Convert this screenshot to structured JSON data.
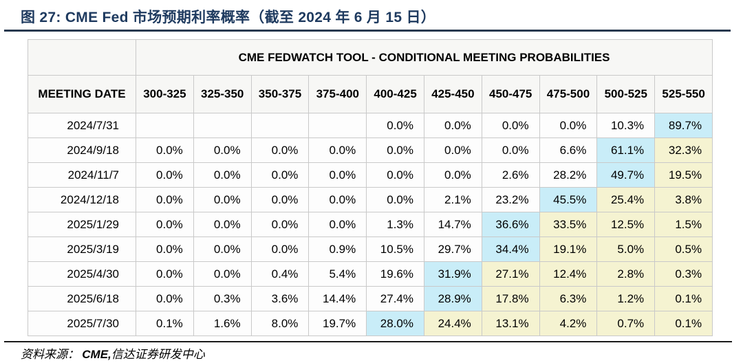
{
  "figure": {
    "title": "图 27:  CME Fed 市场预期利率概率（截至 2024 年 6 月 15 日）"
  },
  "table": {
    "title": "CME FEDWATCH TOOL - CONDITIONAL MEETING PROBABILITIES",
    "date_header": "MEETING DATE",
    "range_headers": [
      "300-325",
      "325-350",
      "350-375",
      "375-400",
      "400-425",
      "425-450",
      "450-475",
      "475-500",
      "500-525",
      "525-550"
    ],
    "rows": [
      {
        "date": "2024/7/31",
        "values": [
          "",
          "",
          "",
          "",
          "0.0%",
          "0.0%",
          "0.0%",
          "0.0%",
          "10.3%",
          "89.7%"
        ],
        "cyan": 9,
        "yellow": []
      },
      {
        "date": "2024/9/18",
        "values": [
          "0.0%",
          "0.0%",
          "0.0%",
          "0.0%",
          "0.0%",
          "0.0%",
          "0.0%",
          "6.6%",
          "61.1%",
          "32.3%"
        ],
        "cyan": 8,
        "yellow": [
          9
        ]
      },
      {
        "date": "2024/11/7",
        "values": [
          "0.0%",
          "0.0%",
          "0.0%",
          "0.0%",
          "0.0%",
          "0.0%",
          "2.6%",
          "28.2%",
          "49.7%",
          "19.5%"
        ],
        "cyan": 8,
        "yellow": [
          9
        ]
      },
      {
        "date": "2024/12/18",
        "values": [
          "0.0%",
          "0.0%",
          "0.0%",
          "0.0%",
          "0.0%",
          "2.1%",
          "23.2%",
          "45.5%",
          "25.4%",
          "3.8%"
        ],
        "cyan": 7,
        "yellow": [
          8,
          9
        ]
      },
      {
        "date": "2025/1/29",
        "values": [
          "0.0%",
          "0.0%",
          "0.0%",
          "0.0%",
          "1.3%",
          "14.7%",
          "36.6%",
          "33.5%",
          "12.5%",
          "1.5%"
        ],
        "cyan": 6,
        "yellow": [
          7,
          8,
          9
        ]
      },
      {
        "date": "2025/3/19",
        "values": [
          "0.0%",
          "0.0%",
          "0.0%",
          "0.9%",
          "10.5%",
          "29.7%",
          "34.4%",
          "19.1%",
          "5.0%",
          "0.5%"
        ],
        "cyan": 6,
        "yellow": [
          7,
          8,
          9
        ]
      },
      {
        "date": "2025/4/30",
        "values": [
          "0.0%",
          "0.0%",
          "0.4%",
          "5.4%",
          "19.6%",
          "31.9%",
          "27.1%",
          "12.4%",
          "2.8%",
          "0.3%"
        ],
        "cyan": 5,
        "yellow": [
          6,
          7,
          8,
          9
        ]
      },
      {
        "date": "2025/6/18",
        "values": [
          "0.0%",
          "0.3%",
          "3.6%",
          "14.4%",
          "27.4%",
          "28.9%",
          "17.8%",
          "6.3%",
          "1.2%",
          "0.1%"
        ],
        "cyan": 5,
        "yellow": [
          6,
          7,
          8,
          9
        ]
      },
      {
        "date": "2025/7/30",
        "values": [
          "0.1%",
          "1.6%",
          "8.0%",
          "19.7%",
          "28.0%",
          "24.4%",
          "13.1%",
          "4.2%",
          "0.7%",
          "0.1%"
        ],
        "cyan": 4,
        "yellow": [
          5,
          6,
          7,
          8,
          9
        ]
      }
    ]
  },
  "source": {
    "prefix": "资料来源：",
    "cme": "CME,",
    "rest": "信达证券研发中心"
  },
  "colors": {
    "title_navy": "#1e3a5f",
    "highlight_cyan": "#c9edf8",
    "highlight_yellow": "#f5f3d1",
    "border_gray": "#c9c9c9"
  }
}
